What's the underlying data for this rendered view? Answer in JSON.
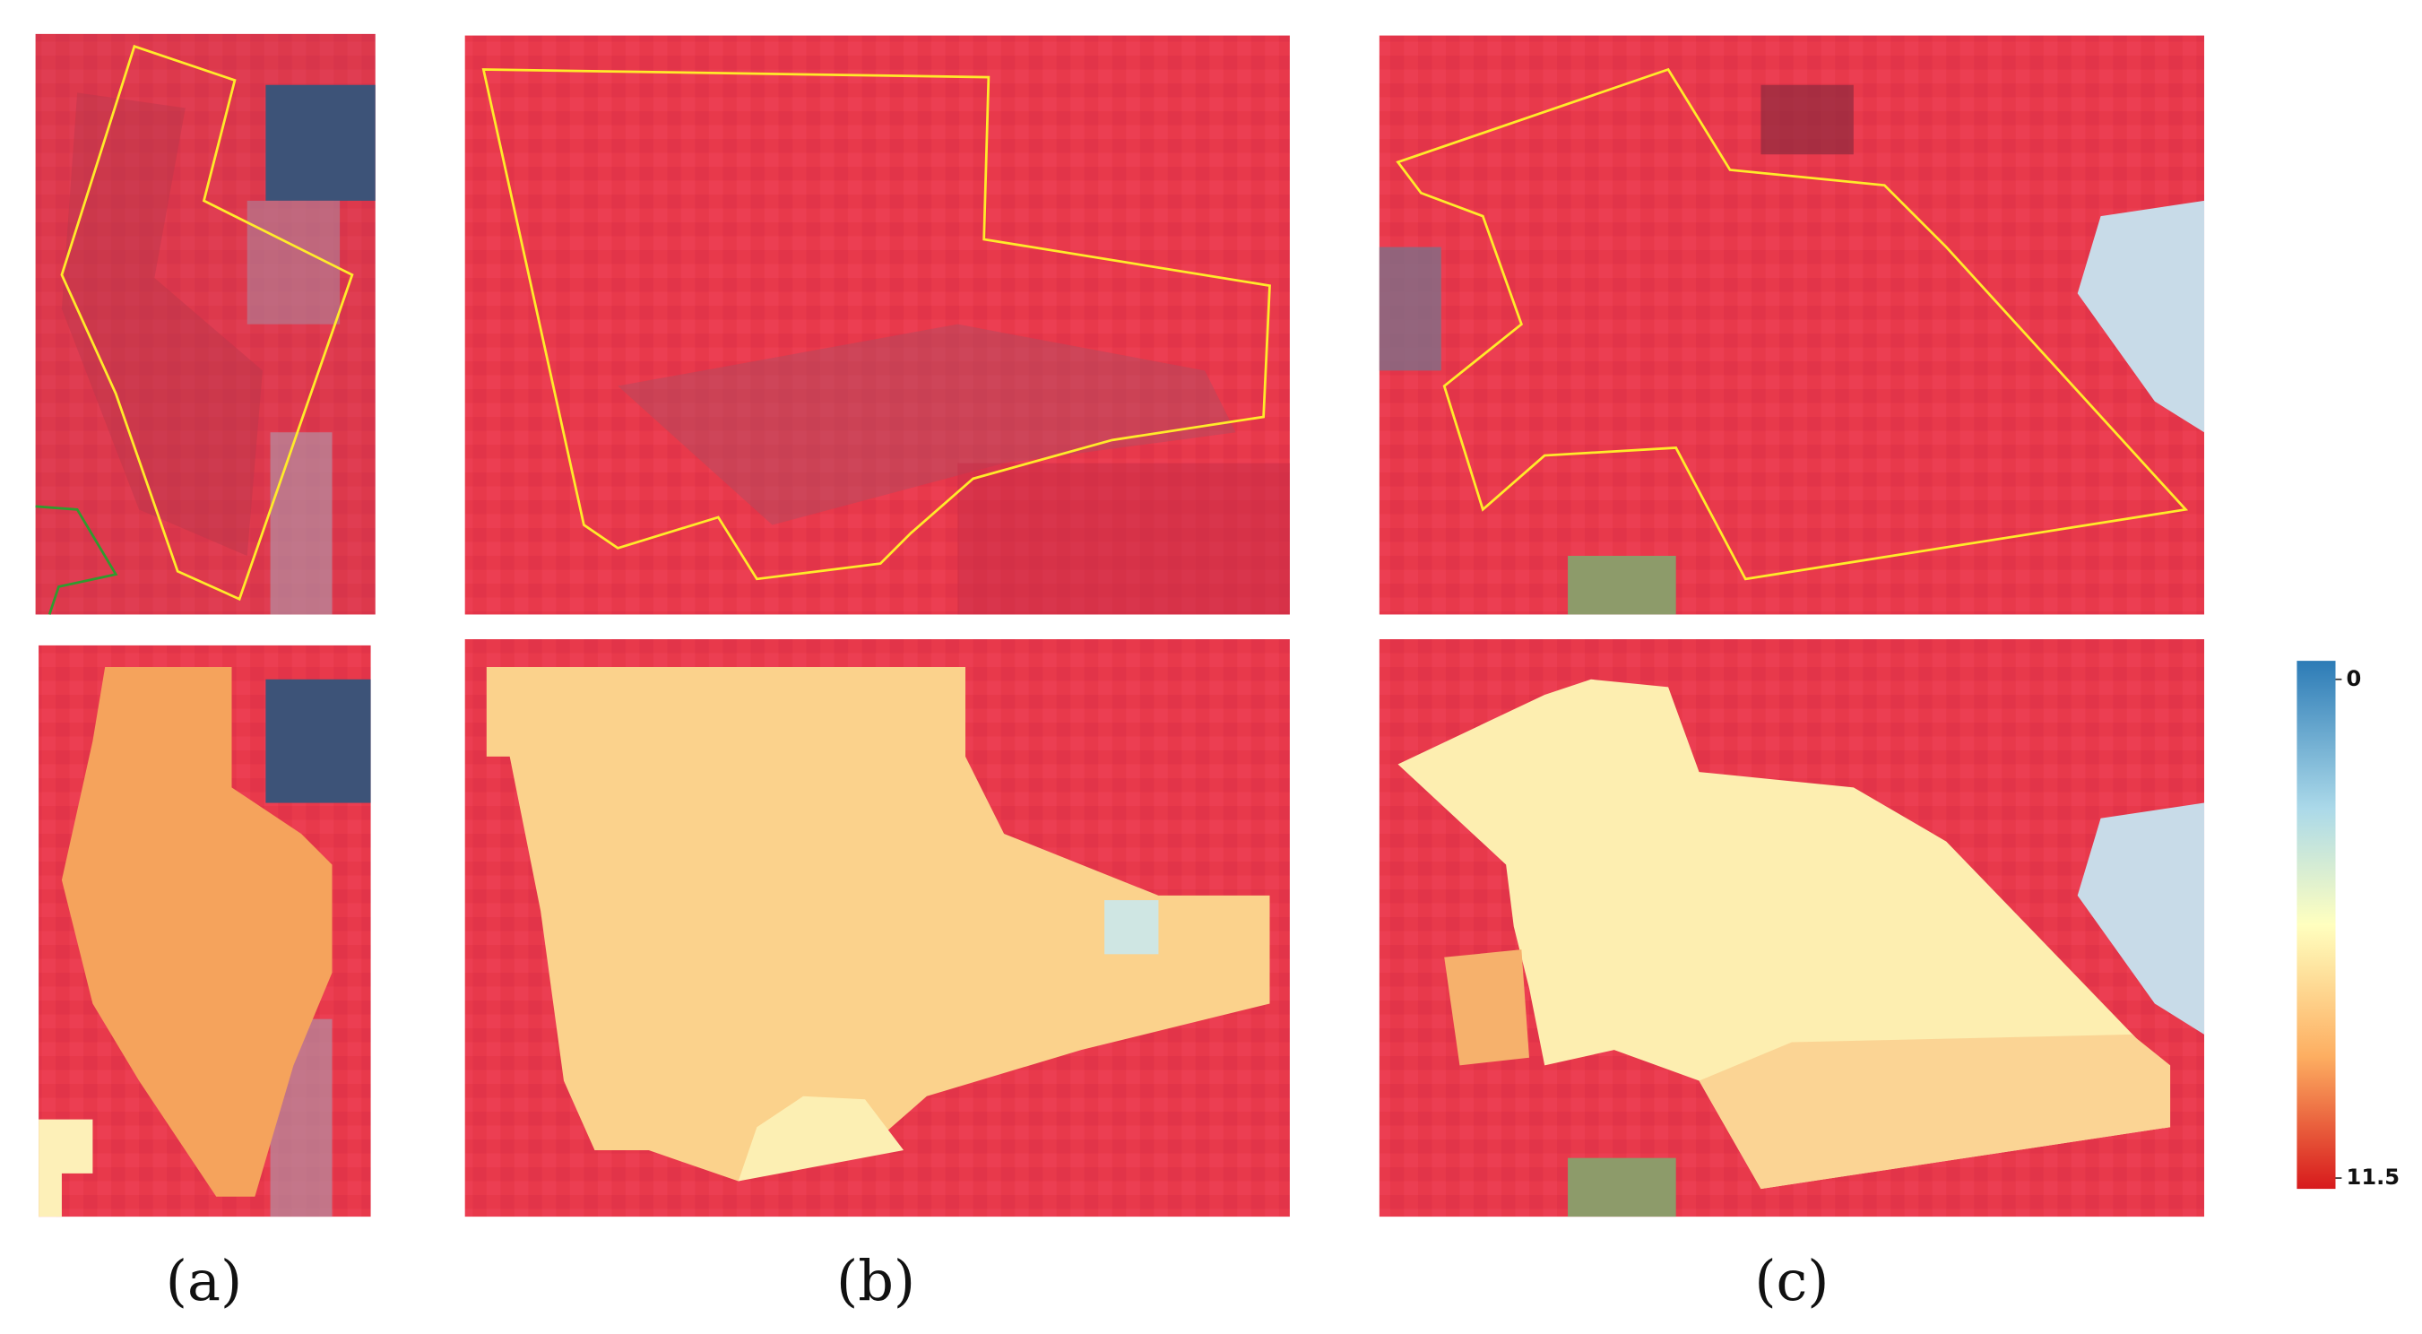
{
  "panels": [
    {
      "label": "(a)"
    },
    {
      "label": "(b)"
    },
    {
      "label": "(c)"
    }
  ],
  "colorbar": {
    "lim": [
      0,
      11.5
    ],
    "ticks": [
      0,
      11.5
    ]
  }
}
